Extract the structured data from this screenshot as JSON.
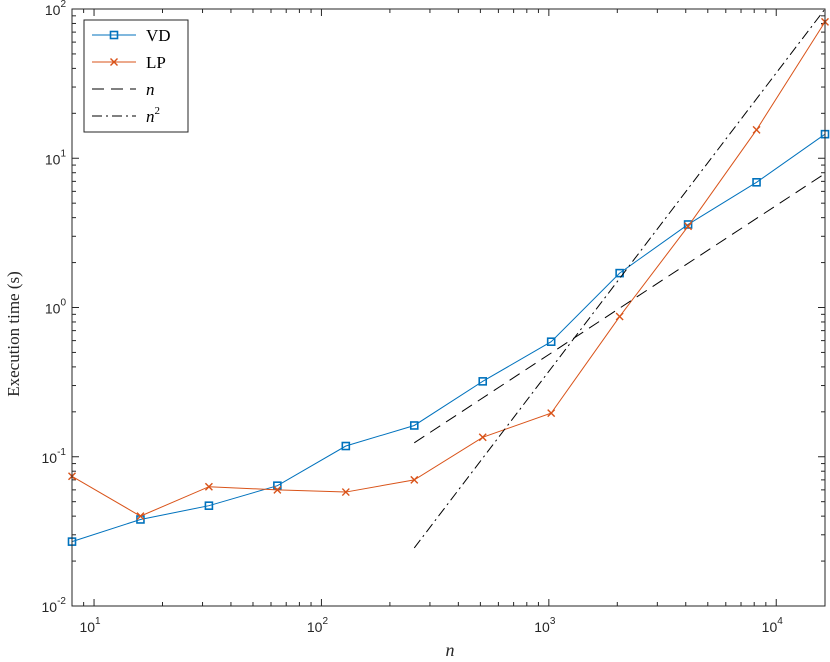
{
  "chart_data": {
    "type": "line",
    "xscale": "log",
    "yscale": "log",
    "xlabel": "n",
    "ylabel": "Execution time (s)",
    "xlim": [
      8,
      16384
    ],
    "ylim": [
      0.01,
      100
    ],
    "x_ticks": [
      {
        "base": "10",
        "exp": "1",
        "value": 10
      },
      {
        "base": "10",
        "exp": "2",
        "value": 100
      },
      {
        "base": "10",
        "exp": "3",
        "value": 1000
      },
      {
        "base": "10",
        "exp": "4",
        "value": 10000
      }
    ],
    "y_ticks": [
      {
        "base": "10",
        "exp": "-2",
        "value": 0.01
      },
      {
        "base": "10",
        "exp": "-1",
        "value": 0.1
      },
      {
        "base": "10",
        "exp": "0",
        "value": 1
      },
      {
        "base": "10",
        "exp": "1",
        "value": 10
      },
      {
        "base": "10",
        "exp": "2",
        "value": 100
      }
    ],
    "legend_position": "top-left",
    "series": [
      {
        "name": "VD",
        "color": "#0072BD",
        "marker": "square",
        "style": "solid",
        "x": [
          8,
          16,
          32,
          64,
          128,
          256,
          512,
          1024,
          2048,
          4096,
          8192,
          16384
        ],
        "y": [
          0.027,
          0.038,
          0.047,
          0.064,
          0.118,
          0.162,
          0.32,
          0.59,
          1.7,
          3.6,
          6.9,
          14.5
        ]
      },
      {
        "name": "LP",
        "color": "#D95319",
        "marker": "x",
        "style": "solid",
        "x": [
          8,
          16,
          32,
          64,
          128,
          256,
          512,
          1024,
          2048,
          4096,
          8192,
          16384
        ],
        "y": [
          0.074,
          0.04,
          0.063,
          0.06,
          0.058,
          0.07,
          0.135,
          0.196,
          0.87,
          3.5,
          15.5,
          82
        ]
      },
      {
        "name": "n",
        "color": "#000000",
        "marker": "none",
        "style": "dashed",
        "x": [
          256,
          16384
        ],
        "y": [
          0.124,
          7.9
        ]
      },
      {
        "name": "n",
        "name_exp": "2",
        "color": "#000000",
        "marker": "none",
        "style": "dashdot",
        "x": [
          256,
          16384
        ],
        "y": [
          0.0245,
          100
        ]
      }
    ]
  }
}
